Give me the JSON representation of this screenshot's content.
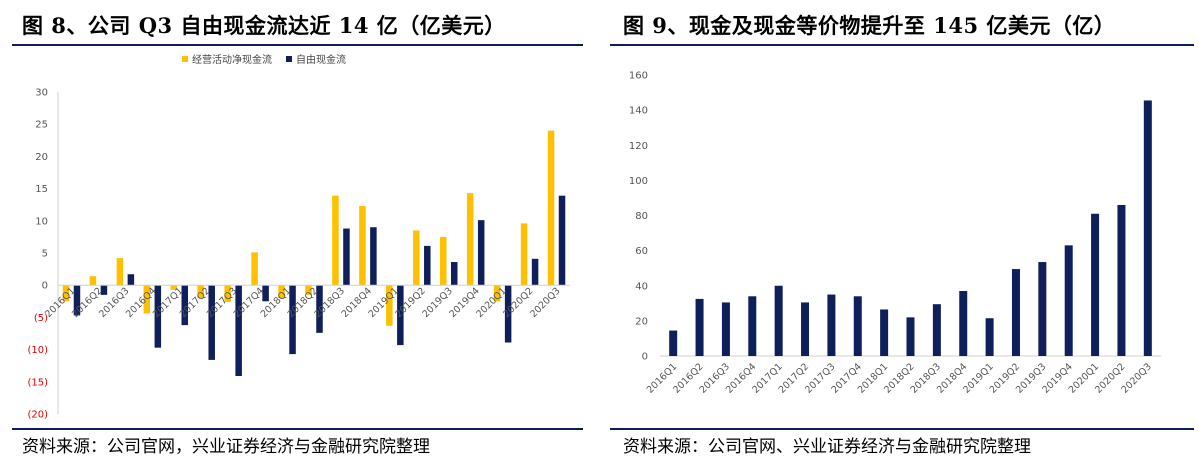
{
  "left": {
    "title": "图 8、公司 Q3 自由现金流达近 14 亿（亿美元）",
    "source": "资料来源：公司官网，兴业证券经济与金融研究院整理"
  },
  "right": {
    "title": "图 9、现金及现金等价物提升至 145 亿美元（亿）",
    "source": "资料来源：公司官网、兴业证券经济与金融研究院整理"
  },
  "colors": {
    "rule": "#0c1f5a",
    "gold": "#ffc000",
    "navy": "#0e1f5b",
    "negative_tick": "#e00000"
  },
  "chart_data": [
    {
      "type": "bar",
      "categories": [
        "2016Q1",
        "2016Q2",
        "2016Q3",
        "2016Q4",
        "2017Q1",
        "2017Q2",
        "2017Q3",
        "2017Q4",
        "2018Q1",
        "2018Q2",
        "2018Q3",
        "2018Q4",
        "2019Q1",
        "2019Q2",
        "2019Q3",
        "2019Q4",
        "2020Q1",
        "2020Q2",
        "2020Q3"
      ],
      "series": [
        {
          "name": "经营活动净现金流",
          "color": "#ffc000",
          "values": [
            -2.5,
            1.4,
            4.2,
            -4.4,
            -0.7,
            -2.0,
            -2.6,
            5.1,
            -2.0,
            -1.5,
            13.9,
            12.3,
            -6.3,
            8.5,
            7.5,
            14.3,
            -2.5,
            9.6,
            24.0
          ]
        },
        {
          "name": "自由现金流",
          "color": "#0e1f5b",
          "values": [
            -4.7,
            -1.5,
            1.7,
            -9.7,
            -6.2,
            -11.6,
            -14.1,
            -2.5,
            -10.7,
            -7.4,
            8.8,
            9.0,
            -9.3,
            6.1,
            3.6,
            10.1,
            -8.9,
            4.1,
            13.9
          ]
        }
      ],
      "ylim": [
        -20,
        30
      ],
      "yticks": [
        "30",
        "25",
        "20",
        "15",
        "10",
        "5",
        "0",
        "(5)",
        "(10)",
        "(15)",
        "(20)"
      ],
      "ytick_values": [
        30,
        25,
        20,
        15,
        10,
        5,
        0,
        -5,
        -10,
        -15,
        -20
      ],
      "legend": "top-center",
      "grid": false
    },
    {
      "type": "bar",
      "categories": [
        "2016Q1",
        "2016Q2",
        "2016Q3",
        "2016Q4",
        "2017Q1",
        "2017Q2",
        "2017Q3",
        "2017Q4",
        "2018Q1",
        "2018Q2",
        "2018Q3",
        "2018Q4",
        "2019Q1",
        "2019Q2",
        "2019Q3",
        "2019Q4",
        "2020Q1",
        "2020Q2",
        "2020Q3"
      ],
      "values": [
        14.5,
        32.5,
        30.5,
        34,
        40,
        30.5,
        35,
        34,
        26.5,
        22,
        29.5,
        37,
        21.5,
        49.5,
        53.5,
        63,
        81,
        86,
        145.5
      ],
      "color": "#0e1f5b",
      "ylim": [
        0,
        160
      ],
      "yticks": [
        "0",
        "20",
        "40",
        "60",
        "80",
        "100",
        "120",
        "140",
        "160"
      ],
      "ytick_values": [
        0,
        20,
        40,
        60,
        80,
        100,
        120,
        140,
        160
      ],
      "grid": false
    }
  ]
}
